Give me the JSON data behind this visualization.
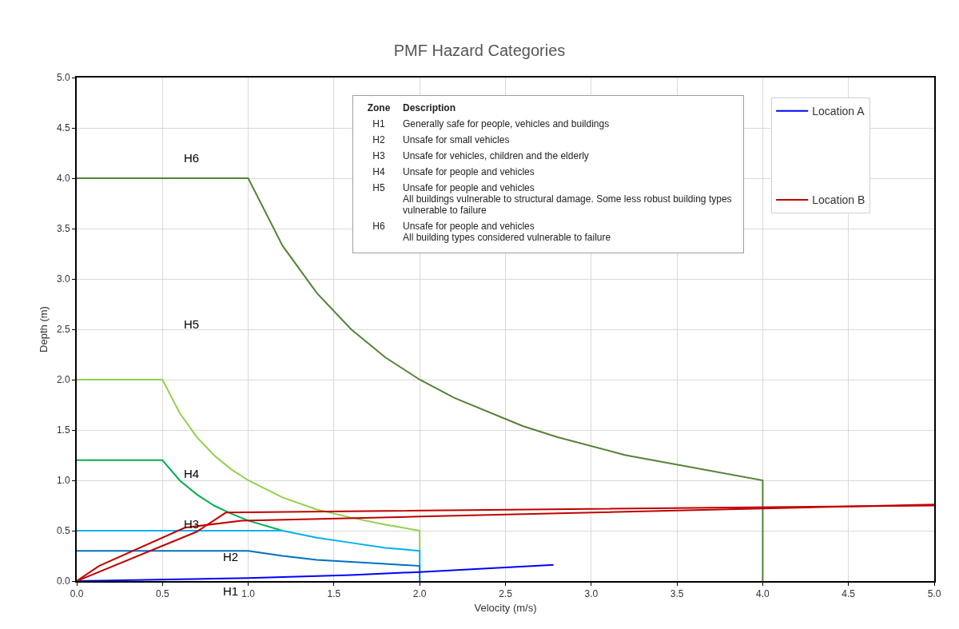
{
  "chart_data": {
    "type": "line",
    "title": "PMF Hazard Categories",
    "xlabel": "Velocity (m/s)",
    "ylabel": "Depth (m)",
    "xlim": [
      0,
      5
    ],
    "ylim": [
      0,
      5
    ],
    "xticks": [
      {
        "value": 0,
        "label": "0.0"
      },
      {
        "value": 0.5,
        "label": "0.5"
      },
      {
        "value": 1,
        "label": "1.0"
      },
      {
        "value": 1.5,
        "label": "1.5"
      },
      {
        "value": 2,
        "label": "2.0"
      },
      {
        "value": 2.5,
        "label": "2.5"
      },
      {
        "value": 3,
        "label": "3.0"
      },
      {
        "value": 3.5,
        "label": "3.5"
      },
      {
        "value": 4,
        "label": "4.0"
      },
      {
        "value": 4.5,
        "label": "4.5"
      },
      {
        "value": 5,
        "label": "5.0"
      }
    ],
    "yticks": [
      {
        "value": 0,
        "label": "0.0"
      },
      {
        "value": 0.5,
        "label": "0.5"
      },
      {
        "value": 1,
        "label": "1.0"
      },
      {
        "value": 1.5,
        "label": "1.5"
      },
      {
        "value": 2,
        "label": "2.0"
      },
      {
        "value": 2.5,
        "label": "2.5"
      },
      {
        "value": 3,
        "label": "3.0"
      },
      {
        "value": 3.5,
        "label": "3.5"
      },
      {
        "value": 4,
        "label": "4.0"
      },
      {
        "value": 4.5,
        "label": "4.5"
      },
      {
        "value": 5,
        "label": "5.0"
      }
    ],
    "grid": true,
    "legend": "top right",
    "marker": "none",
    "line_style": "solid",
    "series": [
      {
        "color": "#548235",
        "x": [
          0,
          1,
          1.2,
          1.4,
          1.6,
          1.8,
          2,
          2.2,
          2.6,
          2.8,
          3.2,
          4,
          4
        ],
        "values": [
          4,
          4,
          3.33,
          2.86,
          2.5,
          2.22,
          2,
          1.82,
          1.54,
          1.43,
          1.25,
          1,
          0
        ]
      },
      {
        "color": "#92d050",
        "x": [
          0,
          0.5,
          0.6,
          0.7,
          0.8,
          0.9,
          1,
          1.2,
          1.4,
          1.6,
          1.8,
          2,
          2
        ],
        "values": [
          2,
          2,
          1.67,
          1.43,
          1.25,
          1.11,
          1,
          0.83,
          0.71,
          0.63,
          0.56,
          0.5,
          0.3
        ]
      },
      {
        "color": "#00b050",
        "x": [
          0,
          0.5,
          0.6,
          0.7,
          0.8,
          0.9,
          1,
          1.2
        ],
        "values": [
          1.2,
          1.2,
          1,
          0.86,
          0.75,
          0.67,
          0.6,
          0.5
        ]
      },
      {
        "color": "#00b0f0",
        "x": [
          0,
          1.2,
          1.4,
          1.6,
          1.8,
          2,
          2
        ],
        "values": [
          0.5,
          0.5,
          0.43,
          0.38,
          0.33,
          0.3,
          0.15
        ]
      },
      {
        "color": "#0070c0",
        "x": [
          0,
          1,
          1.2,
          1.4,
          1.6,
          1.8,
          2,
          2
        ],
        "values": [
          0.3,
          0.3,
          0.25,
          0.21,
          0.19,
          0.17,
          0.15,
          0
        ]
      },
      {
        "name": "Location A",
        "color": "#0000ff",
        "x": [
          0,
          1,
          1.6,
          2,
          2.78
        ],
        "values": [
          0,
          0.03,
          0.06,
          0.09,
          0.16
        ]
      },
      {
        "name": "Location B",
        "color": "#c00000",
        "x": [
          0,
          0.13,
          0.63,
          0.96,
          2,
          5,
          null,
          0,
          0.7,
          0.87,
          5
        ],
        "values": [
          0,
          0.15,
          0.53,
          0.6,
          0.64,
          0.76,
          null,
          0,
          0.49,
          0.68,
          0.75
        ]
      }
    ],
    "annotations": [
      "H6",
      "H5",
      "H4",
      "H3",
      "H2",
      "H1",
      "Zone",
      "Description",
      "H1",
      "Generally safe for people, vehicles and buildings",
      "H2",
      "Unsafe for small vehicles",
      "H3",
      "Unsafe for vehicles, children and the elderly",
      "H4",
      "Unsafe for people and vehicles",
      "H5",
      "Unsafe for people and vehicles\nAll buildings vulnerable to structural damage. Some less robust building types vulnerable to failure",
      "H6",
      "Unsafe for people and vehicles\nAll building types considered vulnerable to failure"
    ]
  }
}
